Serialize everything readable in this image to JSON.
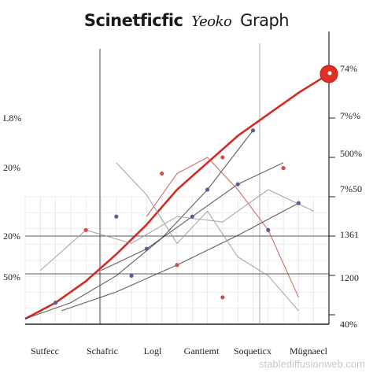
{
  "title": {
    "part1": "Scinetficfic",
    "part2": "Yeoko",
    "part3": "Graph"
  },
  "left_labels": [
    "L8%",
    "20%",
    "20%",
    "50%"
  ],
  "right_labels": [
    "74%",
    "7%%",
    "500%",
    "7%50",
    "1361",
    "1200",
    "40%"
  ],
  "bottom_labels": [
    "Sutfecc",
    "Schafric",
    "Logl",
    "Gantiemt",
    "Soqueticx",
    "Mügnaecl"
  ],
  "watermark": "stablediffusionweb.com",
  "colors": {
    "trend": "#d42a20",
    "axis": "#222222",
    "grid": "#dcdcdc",
    "marker": "#e03026",
    "thin_line": "#444444",
    "point_blue": "#5b5aa0",
    "point_red": "#c95050"
  },
  "chart_data": {
    "type": "line",
    "title": "Scinetficfic Yeoko Graph",
    "xlim": [
      0,
      100
    ],
    "ylim": [
      0,
      100
    ],
    "grid": true,
    "series": [
      {
        "color": "#d42a20",
        "role": "trend",
        "x": [
          0,
          10,
          20,
          30,
          40,
          50,
          60,
          70,
          80,
          90,
          100
        ],
        "y": [
          2,
          8,
          16,
          26,
          37,
          50,
          60,
          70,
          78,
          86,
          93
        ]
      },
      {
        "color": "#444444",
        "x": [
          0,
          15,
          30,
          45,
          60,
          75
        ],
        "y": [
          2,
          8,
          18,
          32,
          50,
          72
        ]
      },
      {
        "color": "#444444",
        "x": [
          12,
          30,
          50,
          70,
          90
        ],
        "y": [
          5,
          12,
          22,
          33,
          45
        ]
      },
      {
        "color": "#444444",
        "x": [
          25,
          40,
          55,
          70,
          85
        ],
        "y": [
          20,
          28,
          40,
          52,
          60
        ]
      },
      {
        "color": "#c95050",
        "x": [
          40,
          50,
          60,
          70,
          80,
          90
        ],
        "y": [
          40,
          56,
          62,
          50,
          35,
          10
        ]
      },
      {
        "color": "#999999",
        "x": [
          5,
          20,
          35,
          50,
          65,
          80,
          95
        ],
        "y": [
          20,
          35,
          30,
          40,
          38,
          50,
          42
        ]
      },
      {
        "color": "#999999",
        "x": [
          30,
          40,
          50,
          60,
          70,
          80,
          90
        ],
        "y": [
          60,
          48,
          30,
          42,
          25,
          18,
          5
        ]
      }
    ],
    "points": [
      {
        "x": 10,
        "y": 8,
        "c": "#5b5aa0"
      },
      {
        "x": 20,
        "y": 35,
        "c": "#c95050"
      },
      {
        "x": 30,
        "y": 40,
        "c": "#5b5aa0"
      },
      {
        "x": 40,
        "y": 28,
        "c": "#5b5aa0"
      },
      {
        "x": 50,
        "y": 22,
        "c": "#c95050"
      },
      {
        "x": 55,
        "y": 40,
        "c": "#5b5aa0"
      },
      {
        "x": 60,
        "y": 50,
        "c": "#5b5aa0"
      },
      {
        "x": 65,
        "y": 62,
        "c": "#c95050"
      },
      {
        "x": 70,
        "y": 52,
        "c": "#5b5aa0"
      },
      {
        "x": 75,
        "y": 72,
        "c": "#5b5aa0"
      },
      {
        "x": 85,
        "y": 58,
        "c": "#c95050"
      },
      {
        "x": 90,
        "y": 45,
        "c": "#5b5aa0"
      },
      {
        "x": 45,
        "y": 56,
        "c": "#c95050"
      },
      {
        "x": 35,
        "y": 18,
        "c": "#5b5aa0"
      },
      {
        "x": 80,
        "y": 35,
        "c": "#5b5aa0"
      },
      {
        "x": 65,
        "y": 10,
        "c": "#c95050"
      }
    ],
    "endpoint": {
      "x": 100,
      "y": 93,
      "color": "#e03026"
    }
  }
}
